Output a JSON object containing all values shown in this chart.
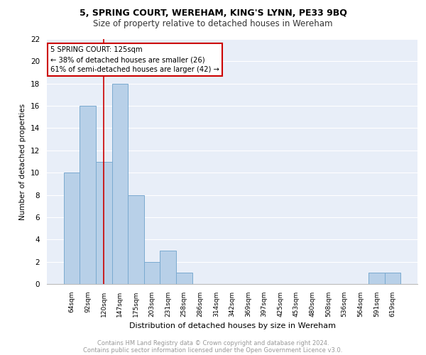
{
  "title1": "5, SPRING COURT, WEREHAM, KING'S LYNN, PE33 9BQ",
  "title2": "Size of property relative to detached houses in Wereham",
  "xlabel": "Distribution of detached houses by size in Wereham",
  "ylabel": "Number of detached properties",
  "bin_labels": [
    "64sqm",
    "92sqm",
    "120sqm",
    "147sqm",
    "175sqm",
    "203sqm",
    "231sqm",
    "258sqm",
    "286sqm",
    "314sqm",
    "342sqm",
    "369sqm",
    "397sqm",
    "425sqm",
    "453sqm",
    "480sqm",
    "508sqm",
    "536sqm",
    "564sqm",
    "591sqm",
    "619sqm"
  ],
  "bar_values": [
    10,
    16,
    11,
    18,
    8,
    2,
    3,
    1,
    0,
    0,
    0,
    0,
    0,
    0,
    0,
    0,
    0,
    0,
    0,
    1,
    1
  ],
  "bar_color": "#B8D0E8",
  "bar_edge_color": "#7AAAD0",
  "vline_color": "#CC0000",
  "annotation_title": "5 SPRING COURT: 125sqm",
  "annotation_line1": "← 38% of detached houses are smaller (26)",
  "annotation_line2": "61% of semi-detached houses are larger (42) →",
  "annotation_box_color": "#FFFFFF",
  "annotation_box_edge": "#CC0000",
  "ylim": [
    0,
    22
  ],
  "yticks": [
    0,
    2,
    4,
    6,
    8,
    10,
    12,
    14,
    16,
    18,
    20,
    22
  ],
  "footer1": "Contains HM Land Registry data © Crown copyright and database right 2024.",
  "footer2": "Contains public sector information licensed under the Open Government Licence v3.0.",
  "bg_color": "#E8EEF8",
  "grid_color": "#FFFFFF"
}
